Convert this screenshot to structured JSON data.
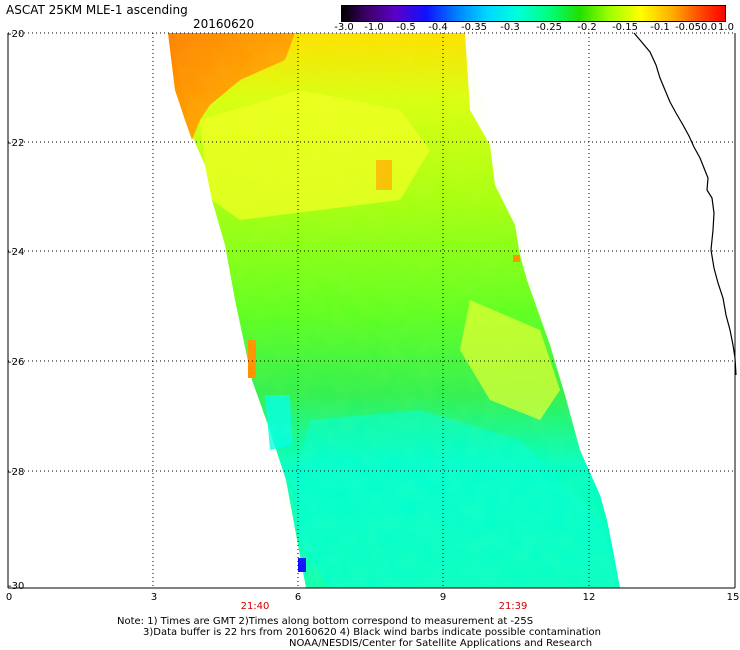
{
  "header": {
    "title": "ASCAT 25KM MLE-1 ascending",
    "date": "20160620"
  },
  "colorbar": {
    "labels": [
      "-3.0",
      "-1.0",
      "-0.5",
      "-0.4",
      "-0.35",
      "-0.3",
      "-0.25",
      "-0.2",
      "-0.15",
      "-0.1",
      "-0.05",
      "0.0",
      "1.0"
    ]
  },
  "axes": {
    "y_labels": [
      "-20",
      "-22",
      "-24",
      "-26",
      "-28",
      "-30"
    ],
    "x_labels": [
      "0",
      "3",
      "6",
      "9",
      "12",
      "15"
    ]
  },
  "times": [
    "21:40",
    "21:39"
  ],
  "notes": {
    "line1": "Note: 1) Times are GMT 2)Times along bottom correspond to measurement at -25S",
    "line2": "3)Data buffer is 22 hrs from 20160620 4) Black wind barbs indicate possible contamination",
    "line3": "NOAA/NESDIS/Center for Satellite Applications and Research"
  },
  "colors": {
    "orange": "#ff8c00",
    "yellow": "#ffff00",
    "green": "#40e000",
    "cyan": "#00ffd8",
    "blue": "#1010ff",
    "coast": "#000000"
  }
}
